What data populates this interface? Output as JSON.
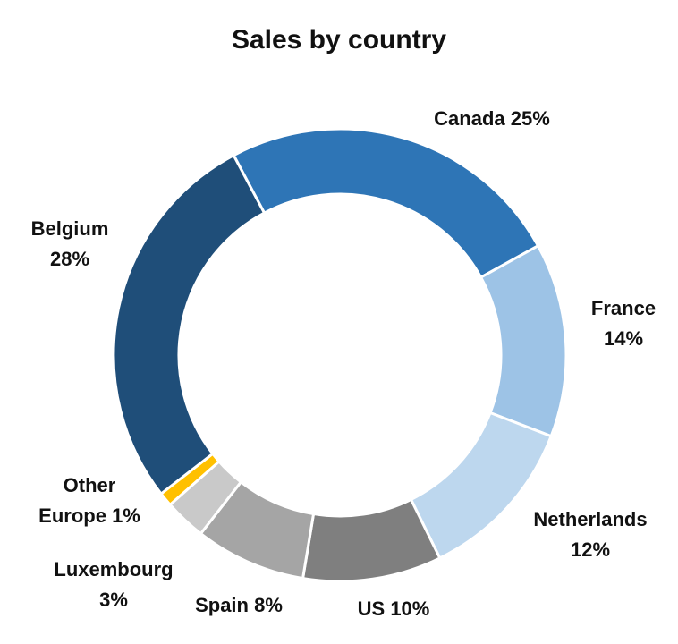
{
  "chart_data": {
    "type": "donut",
    "title": "Sales by country",
    "categories": [
      "Canada",
      "France",
      "Netherlands",
      "US",
      "Spain",
      "Luxembourg",
      "Other Europe",
      "Belgium"
    ],
    "values": [
      25,
      14,
      12,
      10,
      8,
      3,
      1,
      28
    ],
    "value_labels": [
      "25%",
      "14%",
      "12%",
      "10%",
      "8%",
      "3%",
      "1%",
      "28%"
    ],
    "colors": [
      "#2e75b6",
      "#9dc3e6",
      "#bdd7ee",
      "#7f7f7f",
      "#a5a5a5",
      "#c9c9c9",
      "#ffc000",
      "#1f4e79"
    ]
  }
}
